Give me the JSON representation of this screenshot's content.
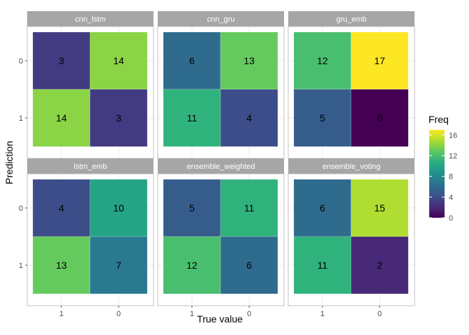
{
  "chart_data": {
    "type": "heatmap",
    "xlabel": "True value",
    "ylabel": "Prediction",
    "x_categories": [
      "1",
      "0"
    ],
    "y_categories": [
      "0",
      "1"
    ],
    "legend": {
      "title": "Freq",
      "ticks": [
        0,
        4,
        8,
        12,
        16
      ],
      "tick_labels": [
        "0",
        "4",
        "8",
        "12",
        "16"
      ],
      "range": [
        0,
        17
      ],
      "placement": "right"
    },
    "grid": true,
    "panels": [
      {
        "name": "cnn_lstm",
        "values": [
          [
            3,
            14
          ],
          [
            14,
            3
          ]
        ]
      },
      {
        "name": "cnn_gru",
        "values": [
          [
            6,
            13
          ],
          [
            11,
            4
          ]
        ]
      },
      {
        "name": "gru_emb",
        "values": [
          [
            12,
            17
          ],
          [
            5,
            0
          ]
        ]
      },
      {
        "name": "lstm_emb",
        "values": [
          [
            4,
            10
          ],
          [
            13,
            7
          ]
        ]
      },
      {
        "name": "ensemble_weighted",
        "values": [
          [
            5,
            11
          ],
          [
            12,
            6
          ]
        ]
      },
      {
        "name": "ensemble_voting",
        "values": [
          [
            6,
            15
          ],
          [
            11,
            2
          ]
        ]
      }
    ]
  },
  "colors": {
    "viridis_stops": [
      "#440154",
      "#472c7a",
      "#3b518b",
      "#2c718e",
      "#21908d",
      "#27ad81",
      "#5cc863",
      "#aadc32",
      "#fde725"
    ],
    "strip_bg": "#a6a6a6",
    "panel_border": "#b3b3b3",
    "grid": "#ebebeb"
  }
}
